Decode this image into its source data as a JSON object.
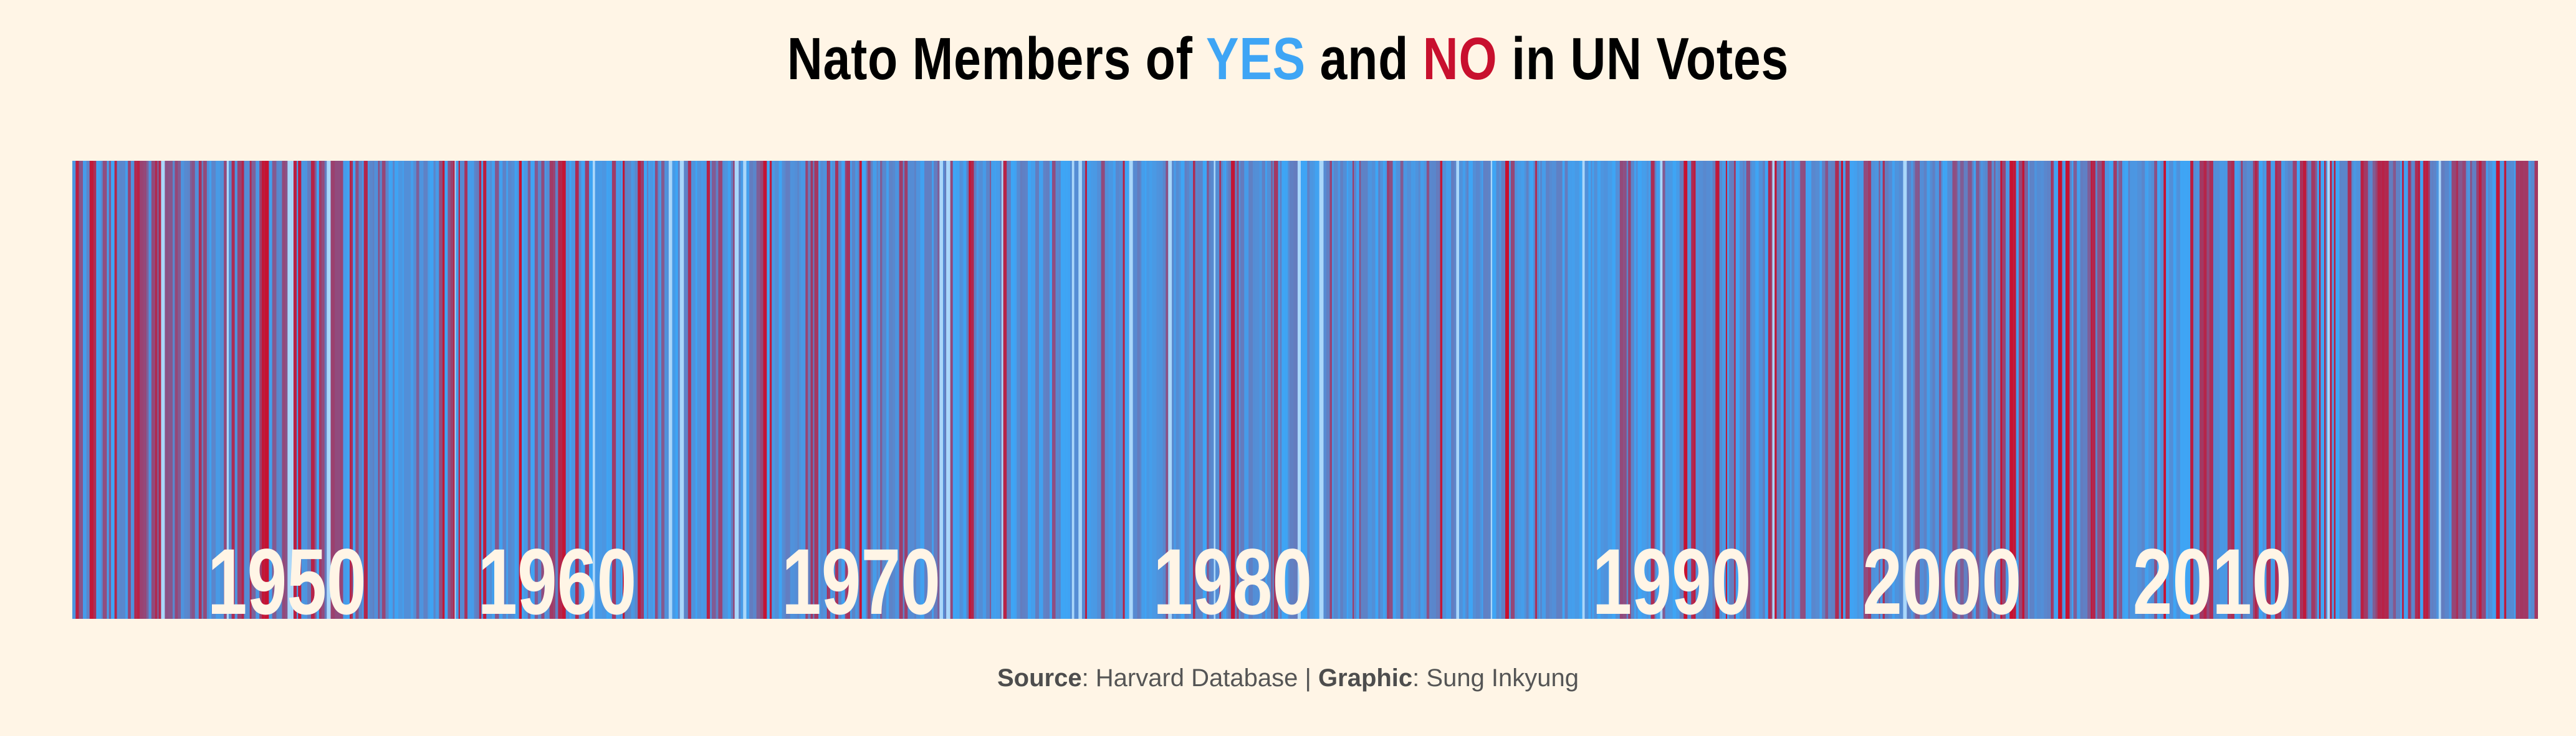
{
  "title": {
    "prefix": "Nato Members of ",
    "yes_word": "YES",
    "middle": " and ",
    "no_word": "NO",
    "suffix": " in UN Votes"
  },
  "caption": {
    "source_label": "Source",
    "source_value": ": Harvard Database | ",
    "graphic_label": "Graphic",
    "graphic_value": ": Sung Inkyung"
  },
  "colors": {
    "background": "#fff5e6",
    "yes": "#3ea5f5",
    "no": "#c8102e",
    "label": "#fff5e6",
    "title": "#000000"
  },
  "chart_data": {
    "type": "heatmap",
    "title": "Nato Members of YES and NO in UN Votes",
    "xlabel": "",
    "ylabel": "",
    "x_range": [
      1946,
      2019
    ],
    "year_labels": [
      "1950",
      "1960",
      "1970",
      "1980",
      "1990",
      "2000",
      "2010"
    ],
    "year_label_positions": [
      1950,
      1958,
      1967,
      1978,
      1991,
      1999,
      2007
    ],
    "color_scale": [
      "NO",
      "YES"
    ],
    "approx_yes_share_by_period": [
      {
        "period": "1946-1952",
        "yes_share": 0.45
      },
      {
        "period": "1953-1960",
        "yes_share": 0.6
      },
      {
        "period": "1961-1975",
        "yes_share": 0.78
      },
      {
        "period": "1976-1988",
        "yes_share": 0.9
      },
      {
        "period": "1989-1998",
        "yes_share": 0.82
      },
      {
        "period": "1999-2008",
        "yes_share": 0.7
      },
      {
        "period": "2009-2019",
        "yes_share": 0.55
      }
    ]
  }
}
